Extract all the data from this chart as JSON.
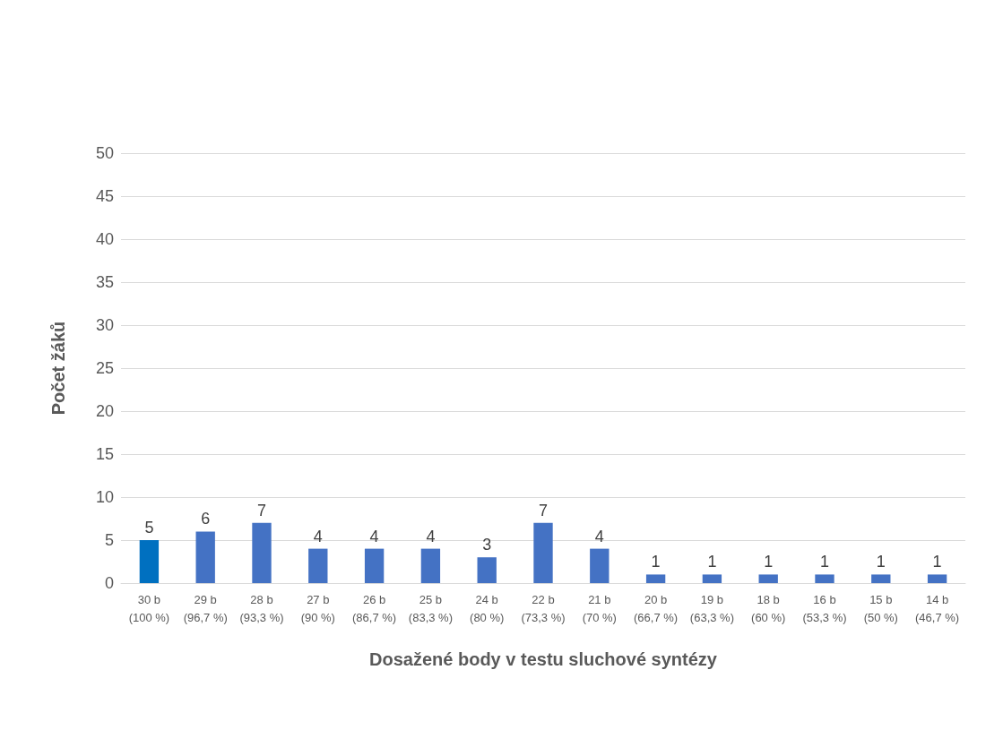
{
  "chart_data": {
    "type": "bar",
    "xlabel": "Dosažené body v testu sluchové syntézy",
    "ylabel": "Počet žáků",
    "categories": [
      "30 b\n(100 %)",
      "29 b\n(96,7 %)",
      "28 b\n(93,3 %)",
      "27 b\n(90 %)",
      "26 b\n(86,7 %)",
      "25 b\n(83,3 %)",
      "24 b\n(80 %)",
      "22 b\n(73,3 %)",
      "21 b\n(70 %)",
      "20 b\n(66,7 %)",
      "19 b\n(63,3 %)",
      "18 b\n(60 %)",
      "16 b\n(53,3 %)",
      "15 b\n(50 %)",
      "14 b\n(46,7 %)"
    ],
    "values": [
      5,
      6,
      7,
      4,
      4,
      4,
      3,
      7,
      4,
      1,
      1,
      1,
      1,
      1,
      1
    ],
    "colors": [
      "#0070c0",
      "#4472c4",
      "#4472c4",
      "#4472c4",
      "#4472c4",
      "#4472c4",
      "#4472c4",
      "#4472c4",
      "#4472c4",
      "#4472c4",
      "#4472c4",
      "#4472c4",
      "#4472c4",
      "#4472c4",
      "#4472c4"
    ],
    "ylim": [
      0,
      50
    ],
    "yticks": [
      0,
      5,
      10,
      15,
      20,
      25,
      30,
      35,
      40,
      45,
      50
    ],
    "grid": "y",
    "data_labels": true
  }
}
